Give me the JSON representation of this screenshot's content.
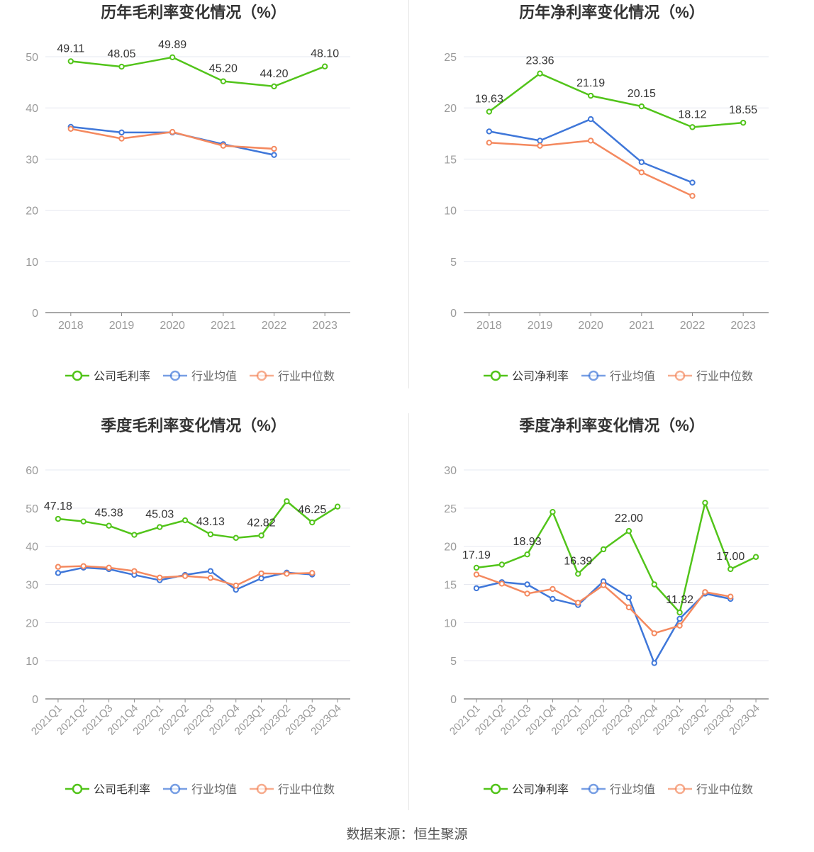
{
  "colors": {
    "company": "#52c41a",
    "avg": "#3f77d9",
    "median": "#f4895f",
    "grid": "#e6e8f0",
    "axis": "#8a8a8a",
    "text": "#333333",
    "tick": "#9a9a9a"
  },
  "source": "数据来源：恒生聚源",
  "chart_data": [
    {
      "type": "line",
      "title": "历年毛利率变化情况（%）",
      "categories": [
        "2018",
        "2019",
        "2020",
        "2021",
        "2022",
        "2023"
      ],
      "ylim": [
        0,
        50
      ],
      "yticks": [
        0,
        10,
        20,
        30,
        40,
        50
      ],
      "grid": true,
      "legend": "bottom",
      "series": [
        {
          "name": "公司毛利率",
          "values": [
            49.11,
            48.05,
            49.89,
            45.2,
            44.2,
            48.1
          ],
          "labels": [
            "49.11",
            "48.05",
            "49.89",
            "45.20",
            "44.20",
            "48.10"
          ]
        },
        {
          "name": "行业均值",
          "values": [
            36.3,
            35.2,
            35.2,
            32.9,
            30.8,
            null
          ],
          "labels": []
        },
        {
          "name": "行业中位数",
          "values": [
            35.9,
            34.0,
            35.3,
            32.6,
            32.0,
            null
          ],
          "labels": []
        }
      ]
    },
    {
      "type": "line",
      "title": "历年净利率变化情况（%）",
      "categories": [
        "2018",
        "2019",
        "2020",
        "2021",
        "2022",
        "2023"
      ],
      "ylim": [
        0,
        25
      ],
      "yticks": [
        0,
        5,
        10,
        15,
        20,
        25
      ],
      "grid": true,
      "legend": "bottom",
      "series": [
        {
          "name": "公司净利率",
          "values": [
            19.63,
            23.36,
            21.19,
            20.15,
            18.12,
            18.55
          ],
          "labels": [
            "19.63",
            "23.36",
            "21.19",
            "20.15",
            "18.12",
            "18.55"
          ]
        },
        {
          "name": "行业均值",
          "values": [
            17.7,
            16.8,
            18.9,
            14.7,
            12.7,
            null
          ],
          "labels": []
        },
        {
          "name": "行业中位数",
          "values": [
            16.6,
            16.3,
            16.8,
            13.7,
            11.4,
            null
          ],
          "labels": []
        }
      ]
    },
    {
      "type": "line",
      "title": "季度毛利率变化情况（%）",
      "categories": [
        "2021Q1",
        "2021Q2",
        "2021Q3",
        "2021Q4",
        "2022Q1",
        "2022Q2",
        "2022Q3",
        "2022Q4",
        "2023Q1",
        "2023Q2",
        "2023Q3",
        "2023Q4"
      ],
      "ylim": [
        0,
        60
      ],
      "yticks": [
        0,
        10,
        20,
        30,
        40,
        50,
        60
      ],
      "grid": true,
      "legend": "bottom",
      "series": [
        {
          "name": "公司毛利率",
          "values": [
            47.18,
            46.5,
            45.38,
            43.0,
            45.03,
            46.8,
            43.13,
            42.2,
            42.82,
            51.8,
            46.25,
            50.4
          ],
          "labels": [
            "47.18",
            "",
            "45.38",
            "",
            "45.03",
            "",
            "43.13",
            "",
            "42.82",
            "",
            "46.25",
            ""
          ]
        },
        {
          "name": "行业均值",
          "values": [
            33.0,
            34.4,
            34.0,
            32.5,
            31.1,
            32.5,
            33.5,
            28.6,
            31.6,
            33.1,
            32.6,
            null
          ],
          "labels": []
        },
        {
          "name": "行业中位数",
          "values": [
            34.6,
            34.8,
            34.4,
            33.5,
            31.8,
            32.2,
            31.7,
            29.7,
            32.9,
            32.8,
            33.0,
            null
          ],
          "labels": []
        }
      ]
    },
    {
      "type": "line",
      "title": "季度净利率变化情况（%）",
      "categories": [
        "2021Q1",
        "2021Q2",
        "2021Q3",
        "2021Q4",
        "2022Q1",
        "2022Q2",
        "2022Q3",
        "2022Q4",
        "2023Q1",
        "2023Q2",
        "2023Q3",
        "2023Q4"
      ],
      "ylim": [
        0,
        30
      ],
      "yticks": [
        0,
        5,
        10,
        15,
        20,
        25,
        30
      ],
      "grid": true,
      "legend": "bottom",
      "series": [
        {
          "name": "公司净利率",
          "values": [
            17.19,
            17.6,
            18.93,
            24.5,
            16.39,
            19.6,
            22.0,
            15.0,
            11.32,
            25.7,
            17.0,
            18.6
          ],
          "labels": [
            "17.19",
            "",
            "18.93",
            "",
            "16.39",
            "",
            "22.00",
            "",
            "11.32",
            "",
            "17.00",
            ""
          ]
        },
        {
          "name": "行业均值",
          "values": [
            14.5,
            15.3,
            15.0,
            13.1,
            12.3,
            15.4,
            13.3,
            4.7,
            10.5,
            13.8,
            13.1,
            null
          ],
          "labels": []
        },
        {
          "name": "行业中位数",
          "values": [
            16.3,
            15.1,
            13.8,
            14.4,
            12.6,
            14.9,
            12.0,
            8.6,
            9.6,
            14.0,
            13.4,
            null
          ],
          "labels": []
        }
      ]
    }
  ]
}
